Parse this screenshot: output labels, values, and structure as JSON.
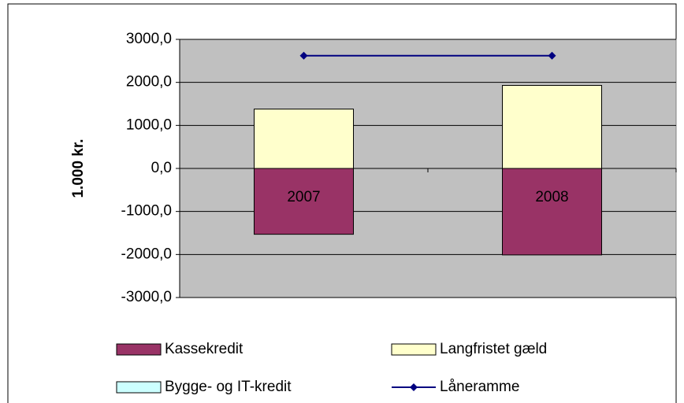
{
  "chart_data": {
    "type": "bar",
    "stacked": true,
    "y_label": "1.000 kr.",
    "categories": [
      "2007",
      "2008"
    ],
    "series": [
      {
        "name": "Kassekredit",
        "color": "#993366",
        "values": [
          -1530,
          -2010
        ]
      },
      {
        "name": "Langfristet gæld",
        "color": "#ffffcc",
        "values": [
          1380,
          1930
        ]
      },
      {
        "name": "Bygge- og IT-kredit",
        "color": "#ccffff",
        "values": [
          0,
          0
        ]
      },
      {
        "name": "Låneramme",
        "type": "line",
        "color": "#000080",
        "values": [
          2620,
          2620
        ]
      }
    ],
    "ylim": [
      -3000,
      3000
    ],
    "yticks": [
      {
        "value": -3000,
        "label": "-3000,0"
      },
      {
        "value": -2000,
        "label": "-2000,0"
      },
      {
        "value": -1000,
        "label": "-1000,0"
      },
      {
        "value": 0,
        "label": "0,0"
      },
      {
        "value": 1000,
        "label": "1000,0"
      },
      {
        "value": 2000,
        "label": "2000,0"
      },
      {
        "value": 3000,
        "label": "3000,0"
      }
    ],
    "grid": true,
    "plot_background": "#c0c0c0",
    "legend": "bottom"
  }
}
